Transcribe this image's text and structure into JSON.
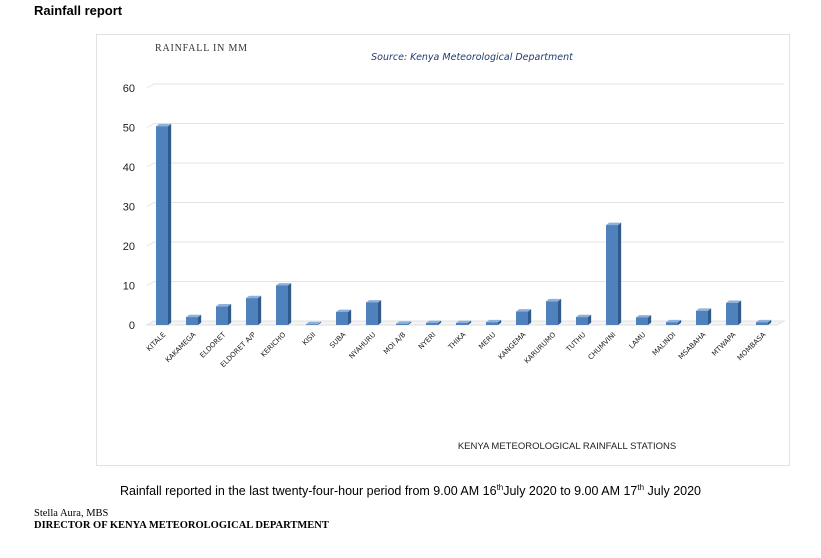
{
  "header": {
    "title": "Rainfall report"
  },
  "caption": {
    "prefix": "Rainfall reported in the last twenty-four-hour period from 9.00 AM 16",
    "sup1": "th",
    "middle": "July 2020 to 9.00 AM 17",
    "sup2": "th",
    "suffix": " July 2020"
  },
  "signature": {
    "name": "Stella Aura, MBS",
    "title": "DIRECTOR OF KENYA METEOROLOGICAL DEPARTMENT"
  },
  "colors": {
    "bar": "#4f81bd",
    "bar_side": "#2e5a8c",
    "bar_top": "#8eb1dc"
  },
  "chart_data": {
    "type": "bar",
    "ylabel": "RAINFALL IN MM",
    "xlabel": "KENYA METEOROLOGICAL RAINFALL STATIONS",
    "source": "Source: Kenya Meteorological Department",
    "ylim": [
      0,
      60
    ],
    "yticks": [
      0,
      10,
      20,
      30,
      40,
      50,
      60
    ],
    "grid": true,
    "legend": "none",
    "categories": [
      "KITALE",
      "KAKAMEGA",
      "ELDORET",
      "ELDORET A/P",
      "KERICHO",
      "KISII",
      "SUBA",
      "NYAHURU",
      "MOI A/B",
      "NYERI",
      "THIKA",
      "MERU",
      "KANGEMA",
      "KARURUMO",
      "TUTHU",
      "CHUMVINI",
      "LAMU",
      "MALINDI",
      "MSABAHA",
      "MTWAPA",
      "MOMBASA"
    ],
    "values": [
      50.3,
      2.0,
      4.7,
      6.8,
      10.0,
      0.2,
      3.3,
      5.7,
      0.3,
      0.5,
      0.5,
      0.7,
      3.4,
      6.0,
      2.0,
      25.3,
      1.9,
      0.7,
      3.6,
      5.6,
      0.7
    ]
  }
}
